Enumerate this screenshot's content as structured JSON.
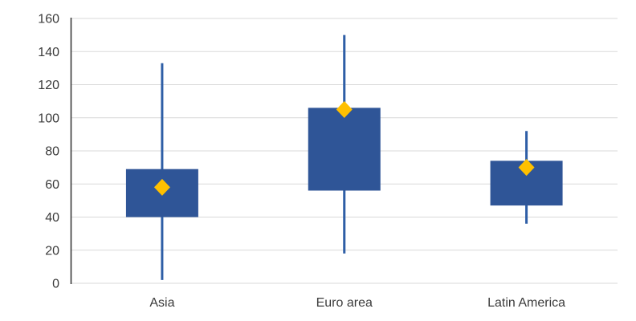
{
  "chart_data": {
    "type": "box",
    "title": "",
    "categories": [
      "Asia",
      "Euro area",
      "Latin America"
    ],
    "boxes": [
      {
        "category": "Asia",
        "whisker_low": 2,
        "box_low": 40,
        "box_high": 69,
        "whisker_high": 133,
        "mean": 58
      },
      {
        "category": "Euro area",
        "whisker_low": 18,
        "box_low": 56,
        "box_high": 106,
        "whisker_high": 150,
        "mean": 105
      },
      {
        "category": "Latin America",
        "whisker_low": 36,
        "box_low": 47,
        "box_high": 74,
        "whisker_high": 92,
        "mean": 70
      }
    ],
    "ylim": [
      0,
      160
    ],
    "yticks": [
      0,
      20,
      40,
      60,
      80,
      100,
      120,
      140,
      160
    ],
    "grid": true,
    "legend": "none",
    "colors": {
      "box_fill": "#2F5597",
      "whisker_line": "#2E5EA6",
      "mean_marker": "#FFC000",
      "gridline": "#D9D9D9",
      "axis_line": "#3A3A3A",
      "tick_text": "#3B3B3B"
    }
  }
}
